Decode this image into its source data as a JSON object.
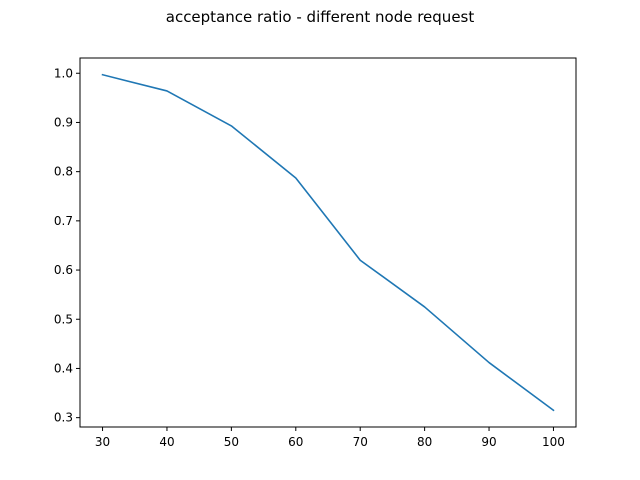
{
  "chart_data": {
    "type": "line",
    "title": "acceptance ratio - different node request",
    "xlabel": "",
    "ylabel": "",
    "x": [
      30,
      40,
      50,
      60,
      70,
      80,
      90,
      100
    ],
    "series": [
      {
        "values": [
          0.997,
          0.964,
          0.893,
          0.787,
          0.62,
          0.525,
          0.412,
          0.315
        ]
      }
    ],
    "xlim": [
      26.5,
      103.5
    ],
    "ylim": [
      0.281,
      1.031
    ],
    "xticks": [
      30,
      40,
      50,
      60,
      70,
      80,
      90,
      100
    ],
    "yticks": [
      0.3,
      0.4,
      0.5,
      0.6,
      0.7,
      0.8,
      0.9,
      1.0
    ],
    "xtick_labels": [
      "30",
      "40",
      "50",
      "60",
      "70",
      "80",
      "90",
      "100"
    ],
    "ytick_labels": [
      "0.3",
      "0.4",
      "0.5",
      "0.6",
      "0.7",
      "0.8",
      "0.9",
      "1.0"
    ],
    "grid": false,
    "line_color": "#1f77b4"
  }
}
